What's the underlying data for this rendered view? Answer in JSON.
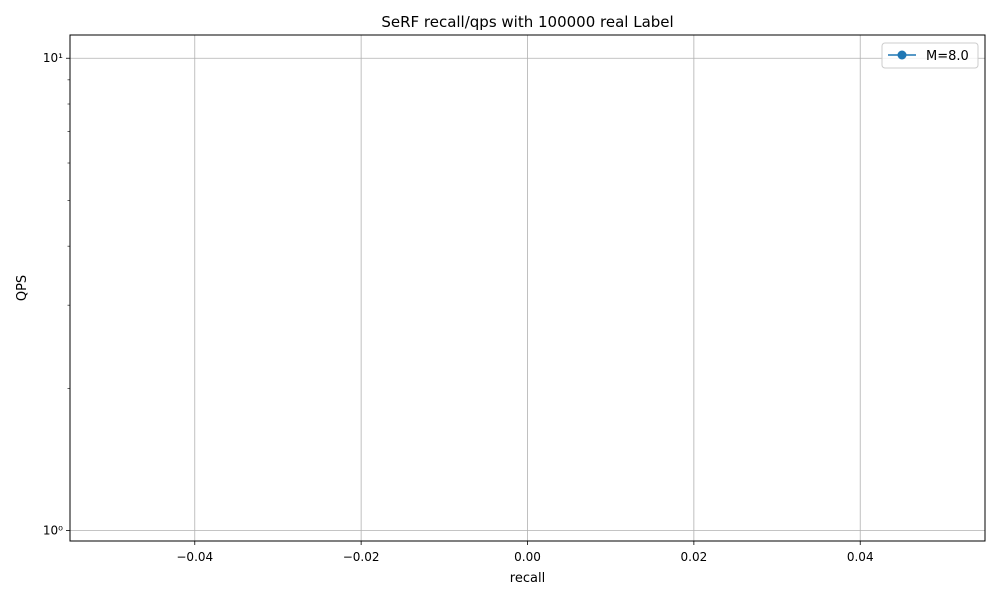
{
  "chart_data": {
    "type": "line",
    "title": "SeRF recall/qps with 100000 real Label",
    "xlabel": "recall",
    "ylabel": "QPS",
    "xlim": [
      -0.055,
      0.055
    ],
    "ylim": [
      0.95,
      11.2
    ],
    "yscale": "log",
    "grid": true,
    "legend_position": "top-right",
    "x_ticks": [
      -0.04,
      -0.02,
      0.0,
      0.02,
      0.04
    ],
    "x_tick_labels": [
      "−0.04",
      "−0.02",
      "0.00",
      "0.02",
      "0.04"
    ],
    "y_ticks": [
      1,
      10
    ],
    "y_tick_labels": [
      "10⁰",
      "10¹"
    ],
    "y_minor_ticks": [
      2,
      3,
      4,
      5,
      6,
      7,
      8,
      9
    ],
    "series": [
      {
        "name": "M=8.0",
        "color": "#1f77b4",
        "marker": "circle",
        "x": [],
        "y": []
      }
    ]
  }
}
